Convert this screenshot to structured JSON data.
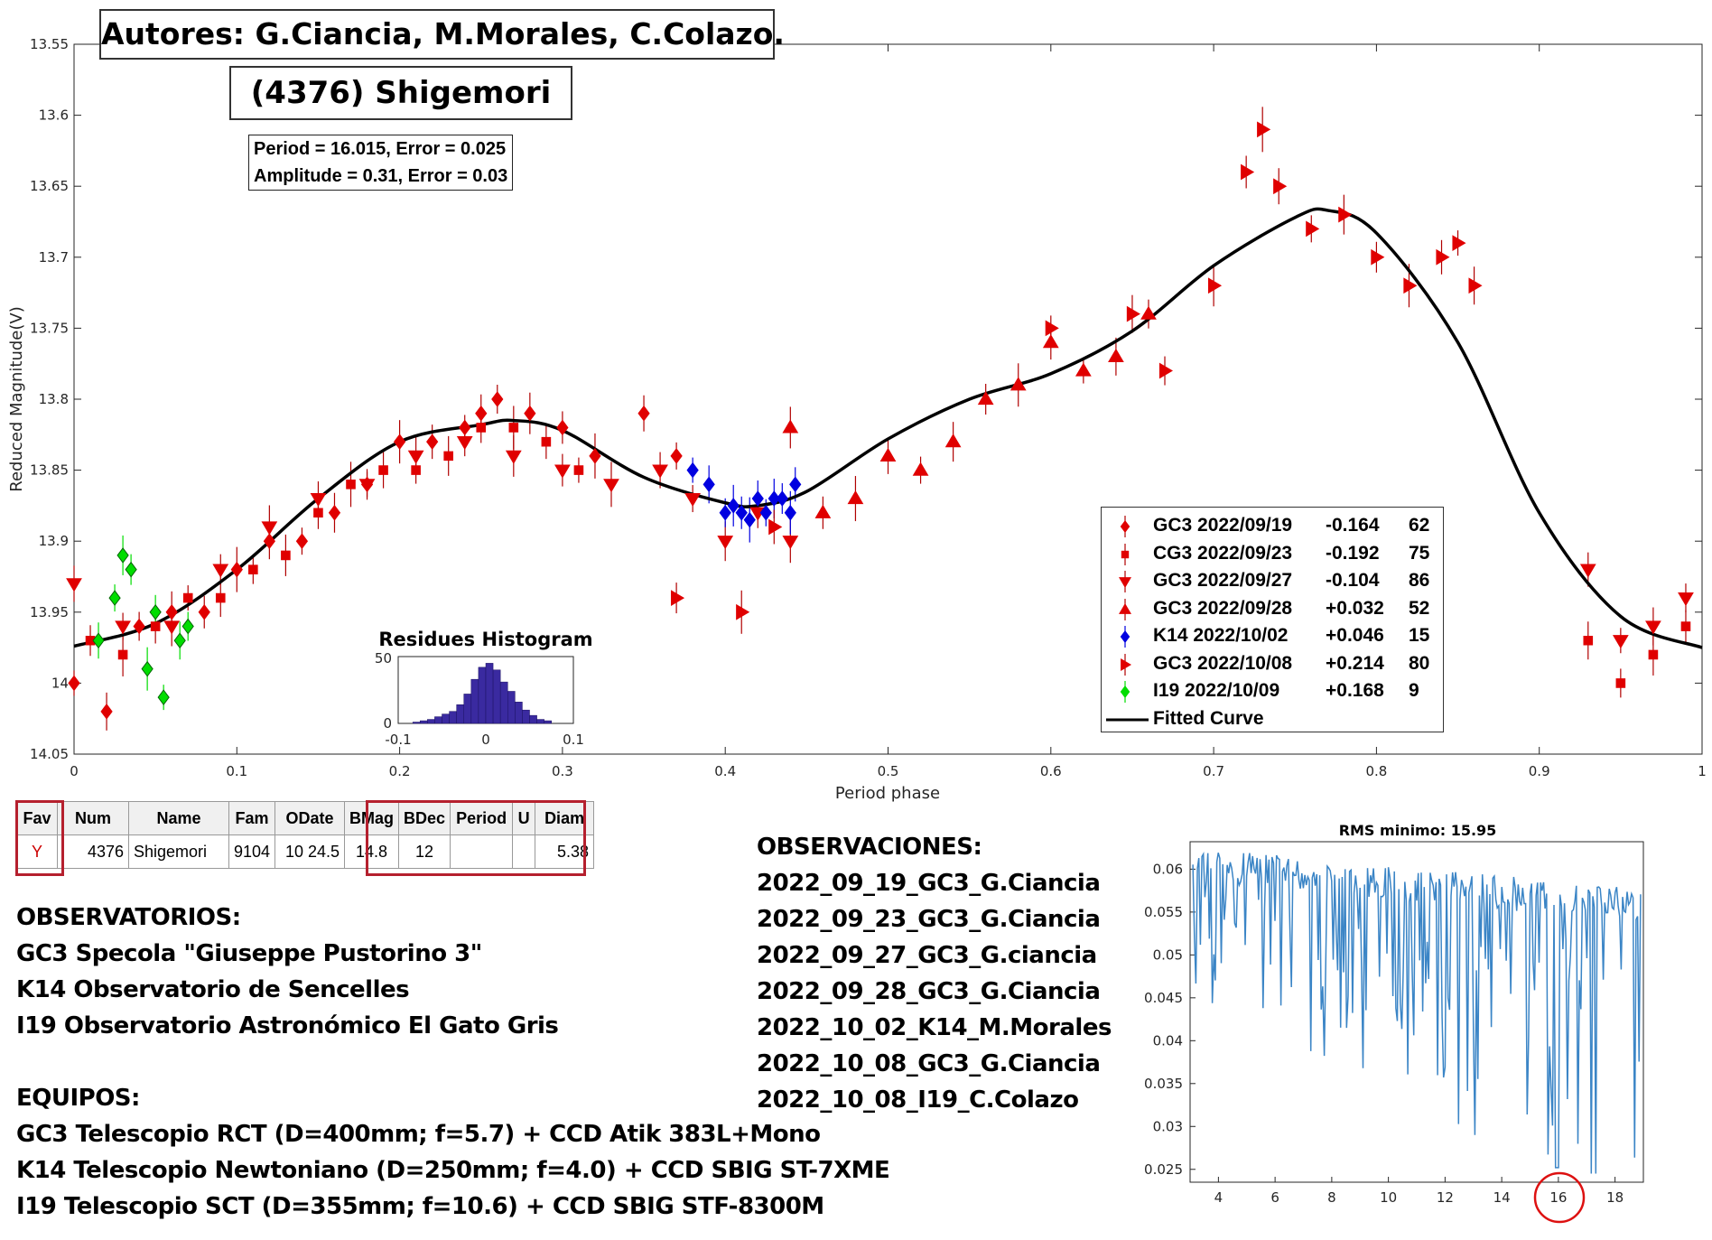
{
  "header": {
    "authors": "Autores: G.Ciancia, M.Morales, C.Colazo.",
    "object": "(4376) Shigemori"
  },
  "period_box": {
    "line1": "Period =  16.015, Error = 0.025",
    "line2": "Amplitude = 0.31, Error = 0.03"
  },
  "histogram": {
    "title": "Residues Histogram",
    "y_ticks": [
      "50",
      "0"
    ],
    "x_ticks": [
      "-0.1",
      "0",
      "0.1"
    ]
  },
  "legend": {
    "entries": [
      {
        "label": "GC3 2022/09/19",
        "offset": "-0.164",
        "count": "62",
        "marker": "diamond",
        "color": "#e00000"
      },
      {
        "label": "CG3 2022/09/23",
        "offset": "-0.192",
        "count": "75",
        "marker": "square",
        "color": "#e00000"
      },
      {
        "label": "GC3 2022/09/27",
        "offset": "-0.104",
        "count": "86",
        "marker": "triangle-down",
        "color": "#e00000"
      },
      {
        "label": "GC3 2022/09/28",
        "offset": "+0.032",
        "count": "52",
        "marker": "triangle-up",
        "color": "#e00000"
      },
      {
        "label": "K14 2022/10/02",
        "offset": "+0.046",
        "count": "15",
        "marker": "diamond",
        "color": "#0000e0"
      },
      {
        "label": "GC3 2022/10/08",
        "offset": "+0.214",
        "count": "80",
        "marker": "triangle-right",
        "color": "#e00000"
      },
      {
        "label": "I19 2022/10/09",
        "offset": "+0.168",
        "count": "9",
        "marker": "diamond",
        "color": "#00dd00"
      }
    ],
    "fitted_label": "Fitted Curve"
  },
  "info_table": {
    "headers": [
      "Fav",
      "Num",
      "Name",
      "Fam",
      "ODate",
      "BMag",
      "BDec",
      "Period",
      "U",
      "Diam"
    ],
    "row": [
      "Y",
      "4376",
      "Shigemori",
      "9104",
      "10 24.5",
      "14.8",
      "12",
      "",
      "",
      "5.38"
    ]
  },
  "observatorios": {
    "title": "OBSERVATORIOS:",
    "items": [
      "GC3 Specola \"Giuseppe Pustorino 3\"",
      "K14 Observatorio de Sencelles",
      "I19 Observatorio Astronómico El Gato Gris"
    ]
  },
  "equipos": {
    "title": "EQUIPOS:",
    "items": [
      "GC3 Telescopio RCT (D=400mm; f=5.7) + CCD Atik 383L+Mono",
      "K14 Telescopio Newtoniano (D=250mm; f=4.0) + CCD SBIG ST-7XME",
      "I19 Telescopio SCT (D=355mm; f=10.6) + CCD SBIG STF-8300M"
    ]
  },
  "observaciones": {
    "title": "OBSERVACIONES:",
    "items": [
      "2022_09_19_GC3_G.Ciancia",
      "2022_09_23_GC3_G.Ciancia",
      "2022_09_27_GC3_G.ciancia",
      "2022_09_28_GC3_G.Ciancia",
      "2022_10_02_K14_M.Morales",
      "2022_10_08_GC3_G.Ciancia",
      "2022_10_08_I19_C.Colazo"
    ]
  },
  "colors": {
    "gc3": "#e00000",
    "k14": "#0000e0",
    "i19": "#00dd00",
    "errorbar": "#b00000",
    "curve": "#000000",
    "rms_line": "#3b85c6",
    "hist_bar": "#3a2aa0",
    "outline": "#b5202e"
  },
  "chart_data": [
    {
      "type": "scatter",
      "title": "",
      "xlabel": "Period phase",
      "ylabel": "Reduced Magnitude(V)",
      "xlim": [
        0,
        1
      ],
      "ylim": [
        14.05,
        13.55
      ],
      "y_reversed": true,
      "x_ticks": [
        "0",
        "0.1",
        "0.2",
        "0.3",
        "0.4",
        "0.5",
        "0.6",
        "0.7",
        "0.8",
        "0.9",
        "1"
      ],
      "y_ticks": [
        "13.55",
        "13.6",
        "13.65",
        "13.7",
        "13.75",
        "13.8",
        "13.85",
        "13.9",
        "13.95",
        "14",
        "14.05"
      ],
      "fitted_curve": {
        "name": "Fitted Curve",
        "phase": [
          0,
          0.05,
          0.1,
          0.15,
          0.2,
          0.25,
          0.27,
          0.3,
          0.35,
          0.4,
          0.42,
          0.45,
          0.5,
          0.55,
          0.6,
          0.65,
          0.7,
          0.75,
          0.77,
          0.8,
          0.85,
          0.9,
          0.95,
          1.0
        ],
        "mag": [
          13.974,
          13.958,
          13.92,
          13.87,
          13.83,
          13.818,
          13.815,
          13.822,
          13.855,
          13.873,
          13.875,
          13.865,
          13.828,
          13.8,
          13.782,
          13.752,
          13.706,
          13.672,
          13.667,
          13.683,
          13.76,
          13.88,
          13.953,
          13.975
        ]
      },
      "series": [
        {
          "name": "GC3 2022/09/19",
          "marker": "diamond",
          "color": "#e00000",
          "x": [
            0.0,
            0.02,
            0.04,
            0.06,
            0.08,
            0.1,
            0.12,
            0.14,
            0.16,
            0.18,
            0.2,
            0.22,
            0.24,
            0.25,
            0.26,
            0.28,
            0.3,
            0.32,
            0.35,
            0.37
          ],
          "y": [
            14.0,
            14.02,
            13.96,
            13.95,
            13.95,
            13.92,
            13.9,
            13.9,
            13.88,
            13.86,
            13.83,
            13.83,
            13.82,
            13.81,
            13.8,
            13.81,
            13.82,
            13.84,
            13.81,
            13.84
          ]
        },
        {
          "name": "CG3 2022/09/23",
          "marker": "square",
          "color": "#e00000",
          "x": [
            0.01,
            0.03,
            0.05,
            0.07,
            0.09,
            0.11,
            0.13,
            0.15,
            0.17,
            0.19,
            0.21,
            0.23,
            0.25,
            0.27,
            0.29,
            0.31,
            0.93,
            0.95,
            0.97,
            0.99
          ],
          "y": [
            13.97,
            13.98,
            13.96,
            13.94,
            13.94,
            13.92,
            13.91,
            13.88,
            13.86,
            13.85,
            13.85,
            13.84,
            13.82,
            13.82,
            13.83,
            13.85,
            13.97,
            14.0,
            13.98,
            13.96
          ]
        },
        {
          "name": "GC3 2022/09/27",
          "marker": "triangle-down",
          "color": "#e00000",
          "x": [
            0.0,
            0.03,
            0.06,
            0.09,
            0.12,
            0.15,
            0.18,
            0.21,
            0.24,
            0.27,
            0.3,
            0.33,
            0.36,
            0.38,
            0.4,
            0.42,
            0.44,
            0.93,
            0.95,
            0.97,
            0.99
          ],
          "y": [
            13.93,
            13.96,
            13.96,
            13.92,
            13.89,
            13.87,
            13.86,
            13.84,
            13.83,
            13.84,
            13.85,
            13.86,
            13.85,
            13.87,
            13.9,
            13.88,
            13.9,
            13.92,
            13.97,
            13.96,
            13.94
          ]
        },
        {
          "name": "GC3 2022/09/28",
          "marker": "triangle-up",
          "color": "#e00000",
          "x": [
            0.44,
            0.46,
            0.48,
            0.5,
            0.52,
            0.54,
            0.56,
            0.58,
            0.6,
            0.62,
            0.64,
            0.66
          ],
          "y": [
            13.82,
            13.88,
            13.87,
            13.84,
            13.85,
            13.83,
            13.8,
            13.79,
            13.76,
            13.78,
            13.77,
            13.74
          ]
        },
        {
          "name": "K14 2022/10/02",
          "marker": "diamond",
          "color": "#0000e0",
          "x": [
            0.38,
            0.39,
            0.4,
            0.405,
            0.41,
            0.415,
            0.42,
            0.425,
            0.43,
            0.435,
            0.44,
            0.443
          ],
          "y": [
            13.85,
            13.86,
            13.88,
            13.875,
            13.88,
            13.885,
            13.87,
            13.88,
            13.87,
            13.87,
            13.88,
            13.86
          ]
        },
        {
          "name": "GC3 2022/10/08",
          "marker": "triangle-right",
          "color": "#e00000",
          "x": [
            0.37,
            0.41,
            0.43,
            0.6,
            0.65,
            0.67,
            0.7,
            0.72,
            0.73,
            0.74,
            0.76,
            0.78,
            0.8,
            0.82,
            0.84,
            0.85,
            0.86
          ],
          "y": [
            13.94,
            13.95,
            13.89,
            13.75,
            13.74,
            13.78,
            13.72,
            13.64,
            13.61,
            13.65,
            13.68,
            13.67,
            13.7,
            13.72,
            13.7,
            13.69,
            13.72
          ]
        },
        {
          "name": "I19 2022/10/09",
          "marker": "diamond",
          "color": "#00dd00",
          "x": [
            0.015,
            0.025,
            0.03,
            0.035,
            0.045,
            0.05,
            0.055,
            0.065,
            0.07
          ],
          "y": [
            13.97,
            13.94,
            13.91,
            13.92,
            13.99,
            13.95,
            14.01,
            13.97,
            13.96
          ]
        }
      ]
    },
    {
      "type": "bar",
      "title": "Residues Histogram",
      "x": [
        -0.1,
        -0.09,
        -0.08,
        -0.07,
        -0.06,
        -0.05,
        -0.04,
        -0.03,
        -0.02,
        -0.01,
        0.0,
        0.01,
        0.02,
        0.03,
        0.04,
        0.05,
        0.06,
        0.07,
        0.08
      ],
      "values": [
        1,
        2,
        3,
        5,
        7,
        9,
        14,
        22,
        33,
        42,
        45,
        40,
        31,
        24,
        16,
        10,
        6,
        3,
        2
      ],
      "xlim": [
        -0.12,
        0.12
      ],
      "ylim": [
        0,
        50
      ]
    },
    {
      "type": "line",
      "title": "RMS minimo: 15.95",
      "xlabel": "",
      "ylabel": "",
      "xlim": [
        3,
        19
      ],
      "ylim": [
        0.0235,
        0.0632
      ],
      "x_ticks": [
        "4",
        "6",
        "8",
        "10",
        "12",
        "14",
        "16",
        "18"
      ],
      "y_ticks": [
        "0.06",
        "0.055",
        "0.05",
        "0.045",
        "0.04",
        "0.035",
        "0.03",
        "0.025"
      ],
      "highlight_x": 16
    }
  ]
}
